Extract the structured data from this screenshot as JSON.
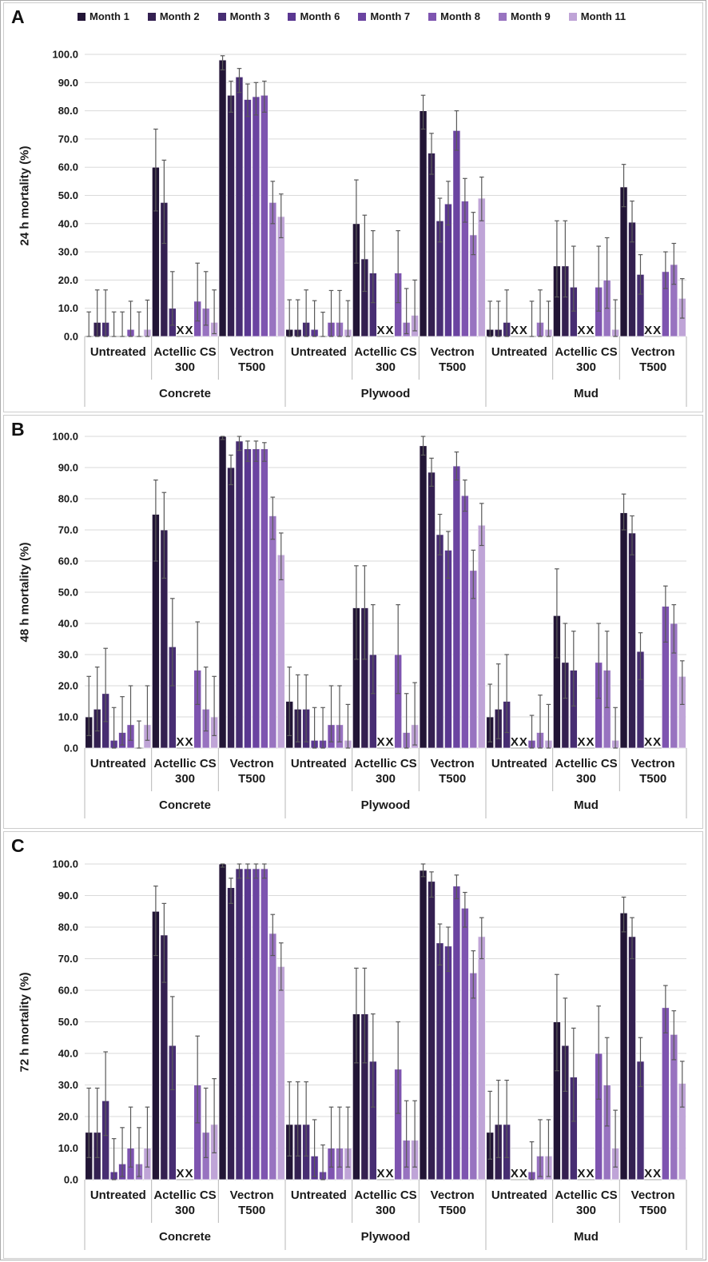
{
  "legend": {
    "months": [
      "Month 1",
      "Month 2",
      "Month 3",
      "Month 6",
      "Month 7",
      "Month 8",
      "Month 9",
      "Month 11"
    ],
    "colors": [
      "#221536",
      "#342051",
      "#472d72",
      "#5a3791",
      "#6b44a1",
      "#7e54b0",
      "#9873c0",
      "#bfa4d7"
    ]
  },
  "missing_marker": "XX",
  "axis": {
    "ylim": [
      0,
      100
    ],
    "ytick_labels": [
      "0.0",
      "10.0",
      "20.0",
      "30.0",
      "40.0",
      "50.0",
      "60.0",
      "70.0",
      "80.0",
      "90.0",
      "100.0"
    ],
    "surfaces": [
      "Concrete",
      "Plywood",
      "Mud"
    ],
    "treatments": [
      {
        "label": "Untreated",
        "lines": [
          "Untreated"
        ]
      },
      {
        "label": "Actellic CS 300",
        "lines": [
          "Actellic CS",
          "300"
        ]
      },
      {
        "label": "Vectron T500",
        "lines": [
          "Vectron",
          "T500"
        ]
      }
    ],
    "grid": true,
    "legend_position": "top"
  },
  "chart_data": [
    {
      "panel": "A",
      "type": "bar",
      "ylabel": "24 h mortality (%)",
      "ylim": [
        0,
        100
      ],
      "months": [
        "Month 1",
        "Month 2",
        "Month 3",
        "Month 6",
        "Month 7",
        "Month 8",
        "Month 9",
        "Month 11"
      ],
      "groups": [
        {
          "surface": "Concrete",
          "treatment": "Untreated",
          "values": [
            0,
            5,
            5,
            0,
            0,
            2.5,
            0,
            2.5
          ],
          "err_lo": [
            0,
            0,
            0,
            0,
            0,
            0,
            0,
            0
          ],
          "err_hi": [
            8.7,
            16.5,
            16.5,
            8.7,
            8.7,
            12.5,
            8.7,
            12.9
          ]
        },
        {
          "surface": "Concrete",
          "treatment": "Actellic CS 300",
          "values": [
            60,
            47.5,
            10,
            null,
            null,
            12.5,
            10,
            5
          ],
          "err_lo": [
            44.5,
            33,
            4,
            null,
            null,
            5.5,
            4,
            1
          ],
          "err_hi": [
            73.5,
            62.5,
            23,
            null,
            null,
            26,
            23,
            16.5
          ]
        },
        {
          "surface": "Concrete",
          "treatment": "Vectron T500",
          "values": [
            98,
            85.5,
            92,
            84,
            85,
            85.5,
            47.5,
            42.5
          ],
          "err_lo": [
            94.5,
            79.5,
            86.5,
            78,
            78.5,
            79.5,
            40,
            35
          ],
          "err_hi": [
            99.5,
            90.5,
            95,
            89.5,
            90,
            90.5,
            55,
            50.5
          ]
        },
        {
          "surface": "Plywood",
          "treatment": "Untreated",
          "values": [
            2.5,
            2.5,
            5,
            2.5,
            0,
            5,
            5,
            2.5
          ],
          "err_lo": [
            0,
            0,
            0,
            0,
            0,
            0,
            0,
            0
          ],
          "err_hi": [
            13,
            13,
            16.5,
            12.7,
            8.6,
            16.3,
            16.3,
            12.7
          ]
        },
        {
          "surface": "Plywood",
          "treatment": "Actellic CS 300",
          "values": [
            40,
            27.5,
            22.5,
            null,
            null,
            22.5,
            5,
            7.5
          ],
          "err_lo": [
            26,
            16,
            12,
            null,
            null,
            12,
            1,
            2
          ],
          "err_hi": [
            55.5,
            43,
            37.5,
            null,
            null,
            37.5,
            17,
            20
          ]
        },
        {
          "surface": "Plywood",
          "treatment": "Vectron T500",
          "values": [
            80,
            65,
            41,
            47,
            73,
            48,
            36,
            49
          ],
          "err_lo": [
            73.5,
            57.5,
            33.5,
            39.5,
            66,
            40.5,
            29,
            41
          ],
          "err_hi": [
            85.5,
            72,
            49,
            55,
            80,
            56,
            44,
            56.5
          ]
        },
        {
          "surface": "Mud",
          "treatment": "Untreated",
          "values": [
            2.5,
            2.5,
            5,
            null,
            null,
            0,
            5,
            2.5
          ],
          "err_lo": [
            0,
            0,
            0,
            null,
            null,
            0,
            0,
            0
          ],
          "err_hi": [
            12.5,
            12.5,
            16.5,
            null,
            null,
            12.5,
            16.5,
            12.5
          ]
        },
        {
          "surface": "Mud",
          "treatment": "Actellic CS 300",
          "values": [
            25,
            25,
            17.5,
            null,
            null,
            17.5,
            20,
            2.5
          ],
          "err_lo": [
            14,
            14,
            9,
            null,
            null,
            9,
            10,
            0
          ],
          "err_hi": [
            41,
            41,
            32,
            null,
            null,
            32,
            35,
            13
          ]
        },
        {
          "surface": "Mud",
          "treatment": "Vectron T500",
          "values": [
            53,
            40.5,
            22,
            null,
            null,
            23,
            25.5,
            13.5
          ],
          "err_lo": [
            46,
            33.5,
            15,
            null,
            null,
            17,
            18.5,
            6.5
          ],
          "err_hi": [
            61,
            48,
            29,
            null,
            null,
            30,
            33,
            20.5
          ]
        }
      ]
    },
    {
      "panel": "B",
      "type": "bar",
      "ylabel": "48 h mortality (%)",
      "ylim": [
        0,
        100
      ],
      "months": [
        "Month 1",
        "Month 2",
        "Month 3",
        "Month 6",
        "Month 7",
        "Month 8",
        "Month 9",
        "Month 11"
      ],
      "groups": [
        {
          "surface": "Concrete",
          "treatment": "Untreated",
          "values": [
            10,
            12.5,
            17.5,
            2.5,
            5,
            7.5,
            0,
            7.5
          ],
          "err_lo": [
            4,
            5.5,
            8.5,
            0,
            1,
            2.5,
            0,
            2.5
          ],
          "err_hi": [
            23,
            26,
            32,
            13,
            16.5,
            20,
            8.7,
            20
          ]
        },
        {
          "surface": "Concrete",
          "treatment": "Actellic CS 300",
          "values": [
            75,
            70,
            32.5,
            null,
            null,
            25,
            12.5,
            10
          ],
          "err_lo": [
            60,
            54.5,
            20,
            null,
            null,
            14,
            5.5,
            4
          ],
          "err_hi": [
            86,
            82,
            48,
            null,
            null,
            40.5,
            26,
            23
          ]
        },
        {
          "surface": "Concrete",
          "treatment": "Vectron T500",
          "values": [
            100,
            90,
            98.5,
            96,
            96,
            96,
            74.5,
            62
          ],
          "err_lo": [
            99,
            84.5,
            95.5,
            92,
            92,
            92,
            67,
            54
          ],
          "err_hi": [
            100,
            94,
            100,
            98.5,
            98.5,
            98,
            80.5,
            69
          ]
        },
        {
          "surface": "Plywood",
          "treatment": "Untreated",
          "values": [
            15,
            12.5,
            12.5,
            2.5,
            2.5,
            7.5,
            7.5,
            2.5
          ],
          "err_lo": [
            4,
            2,
            2,
            0,
            0,
            2,
            2,
            0
          ],
          "err_hi": [
            26,
            23.5,
            23.5,
            13,
            13,
            20,
            20,
            14
          ]
        },
        {
          "surface": "Plywood",
          "treatment": "Actellic CS 300",
          "values": [
            45,
            45,
            30,
            null,
            null,
            30,
            5,
            7.5
          ],
          "err_lo": [
            28.5,
            28.5,
            17.5,
            null,
            null,
            17.5,
            0,
            1
          ],
          "err_hi": [
            58.5,
            58.5,
            46,
            null,
            null,
            46,
            17.5,
            21
          ]
        },
        {
          "surface": "Plywood",
          "treatment": "Vectron T500",
          "values": [
            97,
            88.5,
            68.5,
            63.5,
            90.5,
            81,
            57,
            71.5
          ],
          "err_lo": [
            94,
            84,
            62,
            54.5,
            86,
            76,
            48,
            65
          ],
          "err_hi": [
            100,
            93,
            75,
            69.5,
            95,
            86,
            63.5,
            78.5
          ]
        },
        {
          "surface": "Mud",
          "treatment": "Untreated",
          "values": [
            10,
            12.5,
            15,
            null,
            null,
            2.5,
            5,
            2.5
          ],
          "err_lo": [
            2,
            3,
            5,
            null,
            null,
            0,
            0,
            0
          ],
          "err_hi": [
            20.5,
            27,
            30,
            null,
            null,
            10.5,
            17,
            14
          ]
        },
        {
          "surface": "Mud",
          "treatment": "Actellic CS 300",
          "values": [
            42.5,
            27.5,
            25,
            null,
            null,
            27.5,
            25,
            2.5
          ],
          "err_lo": [
            29,
            16,
            13.5,
            null,
            null,
            16,
            13,
            0
          ],
          "err_hi": [
            57.5,
            40,
            37.5,
            null,
            null,
            40,
            37.5,
            13
          ]
        },
        {
          "surface": "Mud",
          "treatment": "Vectron T500",
          "values": [
            75.5,
            69,
            31,
            null,
            null,
            45.5,
            40,
            23
          ],
          "err_lo": [
            70,
            62,
            22,
            null,
            null,
            34,
            30.5,
            14
          ],
          "err_hi": [
            81.5,
            74.5,
            37,
            null,
            null,
            52,
            46,
            28
          ]
        }
      ]
    },
    {
      "panel": "C",
      "type": "bar",
      "ylabel": "72 h mortality (%)",
      "ylim": [
        0,
        100
      ],
      "months": [
        "Month 1",
        "Month 2",
        "Month 3",
        "Month 6",
        "Month 7",
        "Month 8",
        "Month 9",
        "Month 11"
      ],
      "groups": [
        {
          "surface": "Concrete",
          "treatment": "Untreated",
          "values": [
            15,
            15,
            25,
            2.5,
            5,
            10,
            5,
            10
          ],
          "err_lo": [
            7,
            7,
            14,
            0,
            1,
            4,
            1,
            4
          ],
          "err_hi": [
            29,
            29,
            40.5,
            13,
            16.5,
            23,
            16.5,
            23
          ]
        },
        {
          "surface": "Concrete",
          "treatment": "Actellic CS 300",
          "values": [
            85,
            77.5,
            42.5,
            null,
            null,
            30,
            15,
            17.5
          ],
          "err_lo": [
            71,
            62.5,
            28.5,
            null,
            null,
            18,
            7,
            8.5
          ],
          "err_hi": [
            93,
            87.5,
            58,
            null,
            null,
            45.5,
            29,
            32
          ]
        },
        {
          "surface": "Concrete",
          "treatment": "Vectron T500",
          "values": [
            100,
            92.5,
            98.5,
            98.5,
            98.5,
            98.5,
            78,
            67.5
          ],
          "err_lo": [
            99,
            87.5,
            95.5,
            95.5,
            95.5,
            95.5,
            71,
            60
          ],
          "err_hi": [
            100,
            95.5,
            100,
            100,
            100,
            100,
            84,
            75
          ]
        },
        {
          "surface": "Plywood",
          "treatment": "Untreated",
          "values": [
            17.5,
            17.5,
            17.5,
            7.5,
            2.5,
            10,
            10,
            10
          ],
          "err_lo": [
            7.5,
            7.5,
            7.5,
            1,
            0,
            4,
            4,
            4
          ],
          "err_hi": [
            31,
            31,
            31,
            19,
            11,
            23,
            23,
            23
          ]
        },
        {
          "surface": "Plywood",
          "treatment": "Actellic CS 300",
          "values": [
            52.5,
            52.5,
            37.5,
            null,
            null,
            35,
            12.5,
            12.5
          ],
          "err_lo": [
            37,
            37,
            23,
            null,
            null,
            21,
            4,
            4
          ],
          "err_hi": [
            67,
            67,
            52.5,
            null,
            null,
            50,
            25,
            25
          ]
        },
        {
          "surface": "Plywood",
          "treatment": "Vectron T500",
          "values": [
            98,
            94.5,
            75,
            74,
            93,
            86,
            65.5,
            77
          ],
          "err_lo": [
            96,
            89.5,
            68,
            66,
            89,
            80,
            57.5,
            70
          ],
          "err_hi": [
            100,
            97.5,
            81,
            80,
            96.5,
            91,
            72.5,
            83
          ]
        },
        {
          "surface": "Mud",
          "treatment": "Untreated",
          "values": [
            15,
            17.5,
            17.5,
            null,
            null,
            2.5,
            7.5,
            7.5
          ],
          "err_lo": [
            6.5,
            7,
            7,
            null,
            null,
            0,
            1,
            1
          ],
          "err_hi": [
            28,
            31.5,
            31.5,
            null,
            null,
            12,
            19,
            19
          ]
        },
        {
          "surface": "Mud",
          "treatment": "Actellic CS 300",
          "values": [
            50,
            42.5,
            32.5,
            null,
            null,
            40,
            30,
            10
          ],
          "err_lo": [
            34.5,
            28,
            18.5,
            null,
            null,
            25.5,
            17,
            4
          ],
          "err_hi": [
            65,
            57.5,
            48,
            null,
            null,
            55,
            45,
            22
          ]
        },
        {
          "surface": "Mud",
          "treatment": "Vectron T500",
          "values": [
            84.5,
            77,
            37.5,
            null,
            null,
            54.5,
            46,
            30.5
          ],
          "err_lo": [
            78.5,
            70,
            29.5,
            null,
            null,
            46.5,
            38,
            23
          ],
          "err_hi": [
            89.5,
            83,
            45,
            null,
            null,
            61.5,
            53.5,
            37.5
          ]
        }
      ]
    }
  ]
}
